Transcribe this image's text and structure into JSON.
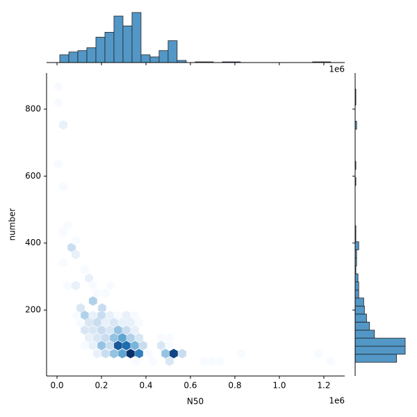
{
  "chart_data": {
    "type": "hexbin-joint",
    "x_label": "N50",
    "y_label": "number",
    "offset_label": "1e6",
    "xlim": [
      -47000,
      1294000
    ],
    "ylim": [
      3,
      908
    ],
    "xticks": [
      {
        "value": 0,
        "label": "0.0"
      },
      {
        "value": 200000,
        "label": "0.2"
      },
      {
        "value": 400000,
        "label": "0.4"
      },
      {
        "value": 600000,
        "label": "0.6"
      },
      {
        "value": 800000,
        "label": "0.8"
      },
      {
        "value": 1000000,
        "label": "1.0"
      },
      {
        "value": 1200000,
        "label": "1.2"
      }
    ],
    "yticks": [
      200,
      400,
      600,
      800
    ],
    "colormap": [
      "#f7fbff",
      "#c6dbef",
      "#6baed6",
      "#2171b5",
      "#08306b"
    ],
    "hex_color_edge": "#ffffff",
    "hexbins": {
      "x": [
        6000,
        6000,
        28000,
        6000,
        28000,
        47000,
        28000,
        66000,
        84000,
        84000,
        28000,
        47000,
        84000,
        125000,
        144000,
        162000,
        241000,
        106000,
        162000,
        203000,
        181000,
        218000,
        88000,
        125000,
        162000,
        200000,
        238000,
        275000,
        312000,
        350000,
        106000,
        144000,
        181000,
        218000,
        256000,
        294000,
        331000,
        369000,
        125000,
        162000,
        200000,
        238000,
        275000,
        312000,
        350000,
        144000,
        181000,
        218000,
        256000,
        294000,
        331000,
        369000,
        469000,
        506000,
        125000,
        162000,
        200000,
        238000,
        275000,
        312000,
        350000,
        387000,
        469000,
        506000,
        181000,
        218000,
        256000,
        294000,
        331000,
        369000,
        412000,
        488000,
        525000,
        563000,
        356000,
        431000,
        506000,
        659000,
        697000,
        734000,
        1231000,
        828000,
        1175000
      ],
      "y": [
        867,
        819,
        753,
        637,
        569,
        453,
        432,
        387,
        366,
        407,
        341,
        273,
        273,
        320,
        295,
        275,
        273,
        206,
        227,
        206,
        250,
        250,
        184,
        184,
        184,
        184,
        184,
        184,
        184,
        184,
        163,
        163,
        163,
        163,
        163,
        163,
        163,
        163,
        140,
        140,
        140,
        140,
        140,
        140,
        140,
        117,
        117,
        117,
        117,
        117,
        117,
        117,
        117,
        117,
        94,
        94,
        94,
        94,
        94,
        94,
        94,
        94,
        94,
        94,
        70,
        70,
        70,
        70,
        70,
        70,
        70,
        70,
        70,
        70,
        47,
        47,
        47,
        47,
        47,
        47,
        47,
        70,
        70
      ],
      "counts": [
        1,
        1,
        2,
        1,
        1,
        1,
        1,
        4,
        2,
        1,
        1,
        1,
        2,
        1,
        2,
        1,
        1,
        3,
        5,
        4,
        1,
        1,
        1,
        5,
        2,
        4,
        2,
        1,
        2,
        1,
        1,
        3,
        4,
        2,
        3,
        2,
        2,
        1,
        3,
        3,
        4,
        3,
        6,
        4,
        2,
        2,
        3,
        4,
        6,
        8,
        5,
        3,
        1,
        1,
        1,
        2,
        6,
        4,
        12,
        11,
        7,
        4,
        3,
        1,
        2,
        4,
        6,
        8,
        14,
        10,
        1,
        6,
        13,
        4,
        1,
        1,
        3,
        1,
        1,
        1,
        1,
        1,
        1
      ]
    },
    "hist_color": "#5297c6",
    "x_hist": {
      "bins": [
        12500,
        53100,
        93700,
        134300,
        174900,
        215500,
        256100,
        296700,
        337300,
        377900,
        418500,
        459100,
        499700,
        540300,
        580900,
        621500,
        662100,
        702700,
        743300,
        783900,
        824500,
        865100,
        905700,
        946300,
        986900,
        1027500,
        1068100,
        1108700,
        1149300,
        1189900,
        1230500
      ],
      "counts": [
        11,
        15,
        17,
        21,
        36,
        43,
        66,
        52,
        71,
        11,
        8,
        17,
        31,
        3,
        0,
        1,
        1,
        0,
        1,
        1,
        0,
        0,
        0,
        0,
        0,
        0,
        0,
        0,
        1,
        1
      ]
    },
    "y_hist": {
      "bins": [
        44,
        68,
        92,
        116,
        140,
        164,
        188,
        212,
        236,
        260,
        284,
        308,
        332,
        356,
        380,
        404,
        428,
        452,
        476,
        500,
        524,
        548,
        572,
        596,
        620,
        644,
        668,
        692,
        716,
        740,
        764,
        788,
        812,
        836,
        860,
        884,
        908
      ],
      "counts": [
        58,
        70,
        70,
        27,
        20,
        16,
        13,
        12,
        5,
        5,
        4,
        1,
        2,
        2,
        5,
        1,
        1,
        0,
        0,
        0,
        0,
        0,
        1,
        0,
        1,
        0,
        0,
        0,
        0,
        2,
        0,
        0,
        1,
        1,
        0,
        0
      ]
    }
  }
}
